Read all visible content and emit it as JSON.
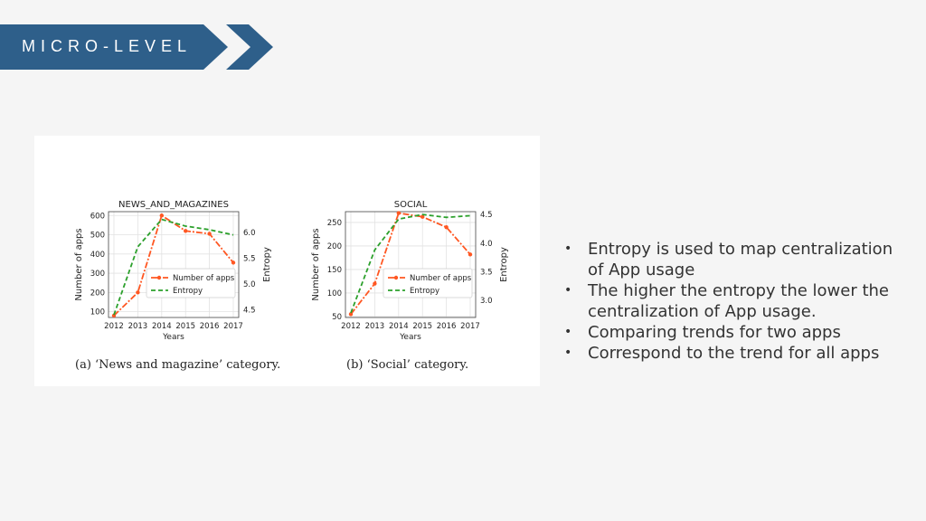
{
  "header": {
    "title": "MICRO-LEVEL",
    "color": "#2e5f8a"
  },
  "captions": [
    "(a) ‘News and magazine’ category.",
    "(b) ‘Social’ category."
  ],
  "bullets": [
    "Entropy is used to map centralization of App usage",
    "The higher the entropy the lower the centralization of App usage.",
    "Comparing trends for two apps",
    "Correspond to the trend for all apps"
  ],
  "chart_data": [
    {
      "type": "line",
      "title": "NEWS_AND_MAGAZINES",
      "xlabel": "Years",
      "ylabel": "Number of apps",
      "y2label": "Entropy",
      "x": [
        2012,
        2013,
        2014,
        2015,
        2016,
        2017
      ],
      "ylim": [
        70,
        620
      ],
      "yticks": [
        100,
        200,
        300,
        400,
        500,
        600
      ],
      "y2lim": [
        4.35,
        6.4
      ],
      "y2ticks": [
        4.5,
        5.0,
        5.5,
        6.0
      ],
      "y2ticklabels": [
        "4.5",
        "5.0",
        "5.5",
        "6.0"
      ],
      "legend": "lower-right",
      "series": [
        {
          "name": "Number of apps",
          "axis": "left",
          "color": "#ff5722",
          "values": [
            80,
            200,
            600,
            520,
            505,
            355
          ]
        },
        {
          "name": "Entropy",
          "axis": "right",
          "color": "#2ca02c",
          "values": [
            4.4,
            5.72,
            6.25,
            6.12,
            6.05,
            5.95
          ]
        }
      ]
    },
    {
      "type": "line",
      "title": "SOCIAL",
      "xlabel": "Years",
      "ylabel": "Number of apps",
      "y2label": "Entropy",
      "x": [
        2012,
        2013,
        2014,
        2015,
        2016,
        2017
      ],
      "ylim": [
        48,
        273
      ],
      "yticks": [
        50,
        100,
        150,
        200,
        250
      ],
      "y2lim": [
        2.7,
        4.55
      ],
      "y2ticks": [
        3.0,
        3.5,
        4.0,
        4.5
      ],
      "y2ticklabels": [
        "3.0",
        "3.5",
        "4.0",
        "4.5"
      ],
      "legend": "lower-right",
      "series": [
        {
          "name": "Number of apps",
          "axis": "left",
          "color": "#ff5722",
          "values": [
            55,
            120,
            270,
            262,
            240,
            182
          ]
        },
        {
          "name": "Entropy",
          "axis": "right",
          "color": "#2ca02c",
          "values": [
            2.78,
            3.88,
            4.42,
            4.5,
            4.45,
            4.48
          ]
        }
      ]
    }
  ]
}
